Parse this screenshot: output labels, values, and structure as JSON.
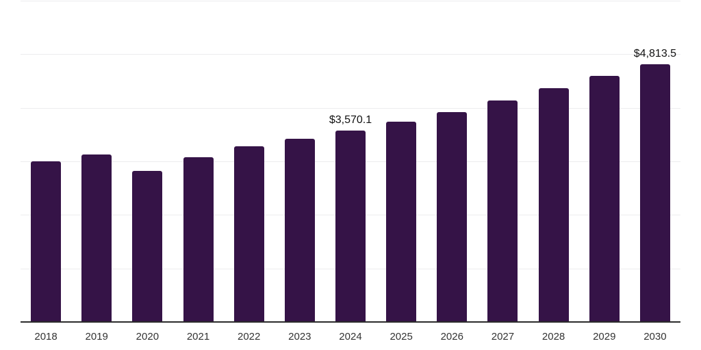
{
  "chart_data": {
    "type": "bar",
    "title": "",
    "xlabel": "",
    "ylabel": "",
    "categories": [
      "2018",
      "2019",
      "2020",
      "2021",
      "2022",
      "2023",
      "2024",
      "2025",
      "2026",
      "2027",
      "2028",
      "2029",
      "2030"
    ],
    "values": [
      3000,
      3130,
      2820,
      3080,
      3280,
      3420,
      3570.1,
      3740,
      3920,
      4130,
      4360,
      4600,
      4813.5
    ],
    "point_labels": [
      "",
      "",
      "",
      "",
      "",
      "",
      "$3,570.1",
      "",
      "",
      "",
      "",
      "",
      "$4,813.5"
    ],
    "ylim": [
      0,
      6000
    ],
    "grid": true,
    "grid_step": 1000,
    "legend": "none",
    "colors": {
      "bar": "#351347",
      "axis_line": "#2b2b2b",
      "gridline": "#ececee",
      "value_label_text": "#111111",
      "tick_label_text": "#333333",
      "background": "#ffffff"
    }
  }
}
